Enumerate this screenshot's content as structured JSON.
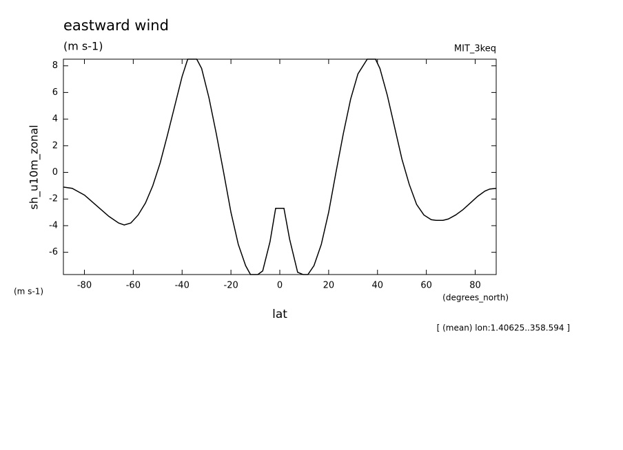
{
  "chart_data": {
    "type": "line",
    "title": "eastward wind",
    "subtitle": "(m s-1)",
    "dataset_label": "MIT_3keq",
    "y_label": "sh_u10m_zonal",
    "y_units": "(m s-1)",
    "x_units": "(degrees_north)",
    "x_label": "lat",
    "annotation": "[ (mean) lon:1.40625..358.594 ]",
    "x": [
      -88.6,
      -85,
      -80,
      -75,
      -70,
      -66,
      -63.7,
      -61,
      -58,
      -55,
      -52,
      -49,
      -46,
      -43,
      -40,
      -37.7,
      -34,
      -32,
      -29,
      -26,
      -23,
      -20,
      -17,
      -14,
      -12,
      -9,
      -7,
      -4,
      -1.7,
      1.7,
      4,
      7.3,
      9.5,
      11.5,
      14,
      17,
      20,
      23,
      26,
      29,
      32,
      35.8,
      39.2,
      41,
      44,
      47,
      50,
      53,
      56,
      59,
      62,
      64,
      66.8,
      69,
      72,
      75,
      78,
      81,
      84,
      86,
      88.6
    ],
    "series": [
      {
        "name": "sh_u10m_zonal",
        "color": "#000000",
        "values": [
          -1.1,
          -1.2,
          -1.7,
          -2.5,
          -3.3,
          -3.8,
          -3.95,
          -3.8,
          -3.2,
          -2.3,
          -1.0,
          0.7,
          2.8,
          5.0,
          7.2,
          8.5,
          8.5,
          7.8,
          5.6,
          2.9,
          0.0,
          -3.0,
          -5.4,
          -7.0,
          -7.67,
          -7.67,
          -7.4,
          -5.2,
          -2.7,
          -2.7,
          -5.0,
          -7.5,
          -7.67,
          -7.67,
          -7.0,
          -5.4,
          -3.0,
          0.0,
          2.9,
          5.5,
          7.4,
          8.5,
          8.5,
          7.8,
          5.8,
          3.4,
          1.0,
          -0.9,
          -2.4,
          -3.2,
          -3.55,
          -3.6,
          -3.6,
          -3.5,
          -3.2,
          -2.8,
          -2.3,
          -1.8,
          -1.4,
          -1.25,
          -1.2
        ]
      }
    ],
    "xlim": [
      -88.6,
      88.6
    ],
    "ylim": [
      -7.67,
      8.5
    ],
    "xticks": [
      -80,
      -60,
      -40,
      -20,
      0,
      20,
      40,
      60,
      80
    ],
    "yticks": [
      -6,
      -4,
      -2,
      0,
      2,
      4,
      6,
      8
    ]
  }
}
